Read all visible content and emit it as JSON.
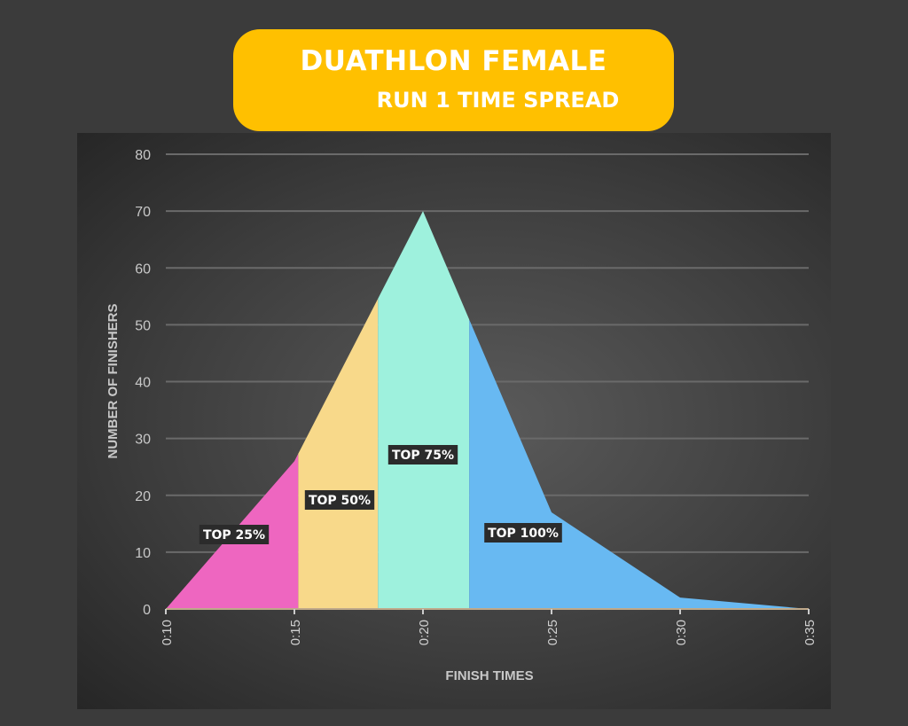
{
  "header": {
    "title": "DUATHLON FEMALE",
    "subtitle": "RUN 1 TIME SPREAD"
  },
  "chart_data": {
    "type": "area",
    "title": "DUATHLON FEMALE RUN 1 TIME SPREAD",
    "xlabel": "FINISH TIMES",
    "ylabel": "NUMBER OF FINISHERS",
    "x": [
      10,
      15,
      20,
      25,
      30,
      35
    ],
    "x_tick_labels": [
      "0:10",
      "0:15",
      "0:20",
      "0:25",
      "0:30",
      "0:35"
    ],
    "y": [
      0,
      26,
      70,
      17,
      2,
      0
    ],
    "ylim": [
      0,
      80
    ],
    "y_ticks": [
      0,
      10,
      20,
      30,
      40,
      50,
      60,
      70,
      80
    ],
    "grid": true,
    "regions": [
      {
        "label": "TOP 25%",
        "from": 10,
        "to": 15.15,
        "color": "#ee66c0"
      },
      {
        "label": "TOP 50%",
        "from": 15.15,
        "to": 18.25,
        "color": "#f8d98a"
      },
      {
        "label": "TOP 75%",
        "from": 18.25,
        "to": 21.8,
        "color": "#9ef1dd"
      },
      {
        "label": "TOP 100%",
        "from": 21.8,
        "to": 35,
        "color": "#68b9f2"
      }
    ]
  }
}
